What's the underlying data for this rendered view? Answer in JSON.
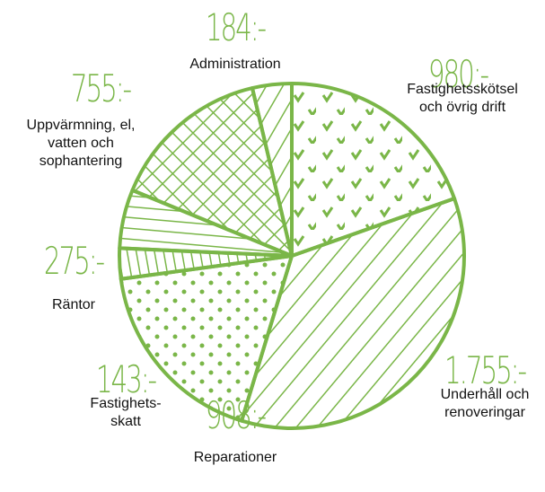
{
  "chart_data": {
    "type": "pie",
    "categories": [
      "Fastighetsskötsel och övrig drift",
      "Underhåll och renoveringar",
      "Reparationer",
      "Fastighets-skatt",
      "Räntor",
      "Uppvärmning, el, vatten och sophantering",
      "Administration"
    ],
    "values": [
      980,
      1755,
      908,
      143,
      275,
      755,
      184
    ],
    "value_labels": [
      "980:-",
      "1.755:-",
      "908:-",
      "143:-",
      "275:-",
      "755:-",
      "184:-"
    ],
    "color": "#7ab648"
  }
}
